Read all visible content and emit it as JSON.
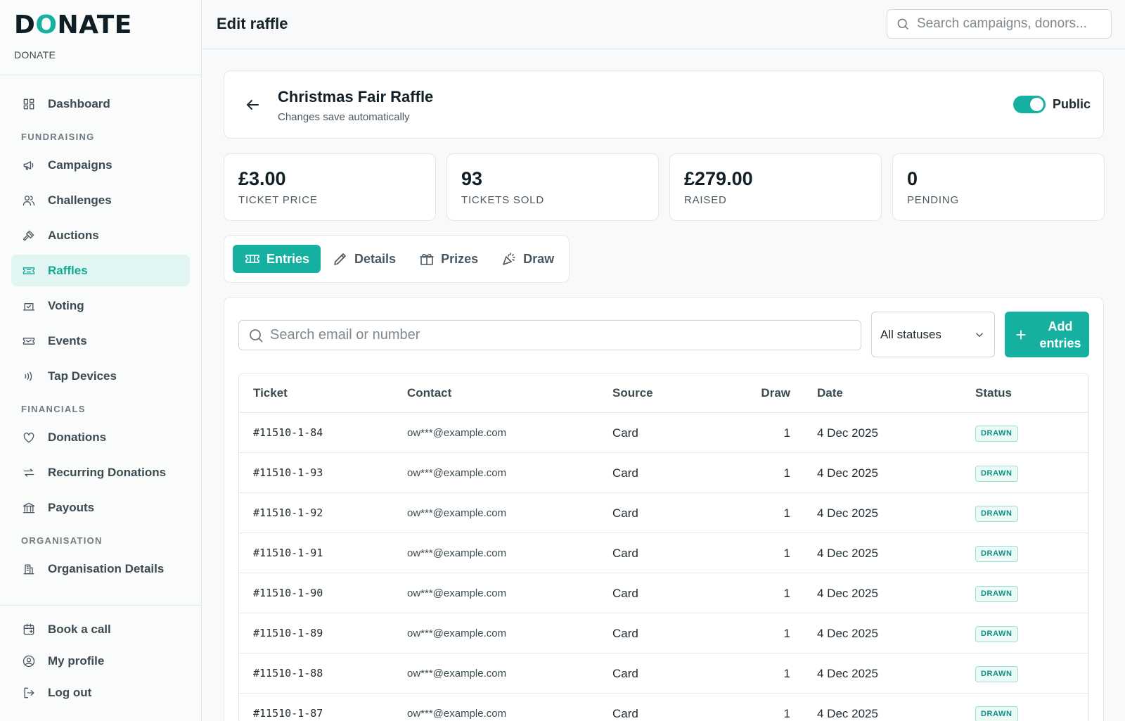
{
  "brand": {
    "logo_pre": "D",
    "logo_o": "O",
    "logo_post": "NATE",
    "subtitle": "DONATE"
  },
  "sidebar": {
    "dashboard": "Dashboard",
    "sec_fundraising": "FUNDRAISING",
    "campaigns": "Campaigns",
    "challenges": "Challenges",
    "auctions": "Auctions",
    "raffles": "Raffles",
    "voting": "Voting",
    "events": "Events",
    "tap_devices": "Tap Devices",
    "sec_financials": "FINANCIALS",
    "donations": "Donations",
    "recurring": "Recurring Donations",
    "payouts": "Payouts",
    "sec_organisation": "ORGANISATION",
    "org_details": "Organisation Details",
    "book_call": "Book a call",
    "my_profile": "My profile",
    "log_out": "Log out"
  },
  "header": {
    "title": "Edit raffle",
    "search_placeholder": "Search campaigns, donors..."
  },
  "raffle": {
    "name": "Christmas Fair Raffle",
    "subtitle": "Changes save automatically",
    "visibility_label": "Public",
    "visibility_on": true
  },
  "stats": [
    {
      "value": "£3.00",
      "caption": "TICKET PRICE"
    },
    {
      "value": "93",
      "caption": "TICKETS SOLD"
    },
    {
      "value": "£279.00",
      "caption": "RAISED"
    },
    {
      "value": "0",
      "caption": "PENDING"
    }
  ],
  "tabs": [
    {
      "label": "Entries",
      "icon": "ticket-icon",
      "active": true
    },
    {
      "label": "Details",
      "icon": "pencil-icon",
      "active": false
    },
    {
      "label": "Prizes",
      "icon": "gift-icon",
      "active": false
    },
    {
      "label": "Draw",
      "icon": "party-popper-icon",
      "active": false
    }
  ],
  "entries": {
    "search_placeholder": "Search email or number",
    "status_filter": "All statuses",
    "add_button": "Add entries",
    "columns": {
      "ticket": "Ticket",
      "contact": "Contact",
      "source": "Source",
      "draw": "Draw",
      "date": "Date",
      "status": "Status"
    },
    "rows": [
      {
        "ticket": "#11510-1-84",
        "contact": "ow***@example.com",
        "source": "Card",
        "draw": "1",
        "date": "4 Dec 2025",
        "status": "DRAWN"
      },
      {
        "ticket": "#11510-1-93",
        "contact": "ow***@example.com",
        "source": "Card",
        "draw": "1",
        "date": "4 Dec 2025",
        "status": "DRAWN"
      },
      {
        "ticket": "#11510-1-92",
        "contact": "ow***@example.com",
        "source": "Card",
        "draw": "1",
        "date": "4 Dec 2025",
        "status": "DRAWN"
      },
      {
        "ticket": "#11510-1-91",
        "contact": "ow***@example.com",
        "source": "Card",
        "draw": "1",
        "date": "4 Dec 2025",
        "status": "DRAWN"
      },
      {
        "ticket": "#11510-1-90",
        "contact": "ow***@example.com",
        "source": "Card",
        "draw": "1",
        "date": "4 Dec 2025",
        "status": "DRAWN"
      },
      {
        "ticket": "#11510-1-89",
        "contact": "ow***@example.com",
        "source": "Card",
        "draw": "1",
        "date": "4 Dec 2025",
        "status": "DRAWN"
      },
      {
        "ticket": "#11510-1-88",
        "contact": "ow***@example.com",
        "source": "Card",
        "draw": "1",
        "date": "4 Dec 2025",
        "status": "DRAWN"
      },
      {
        "ticket": "#11510-1-87",
        "contact": "ow***@example.com",
        "source": "Card",
        "draw": "1",
        "date": "4 Dec 2025",
        "status": "DRAWN"
      }
    ]
  },
  "colors": {
    "accent": "#16b0a0",
    "accent_light": "#e1f5f2",
    "badge_text": "#0d8f81"
  }
}
